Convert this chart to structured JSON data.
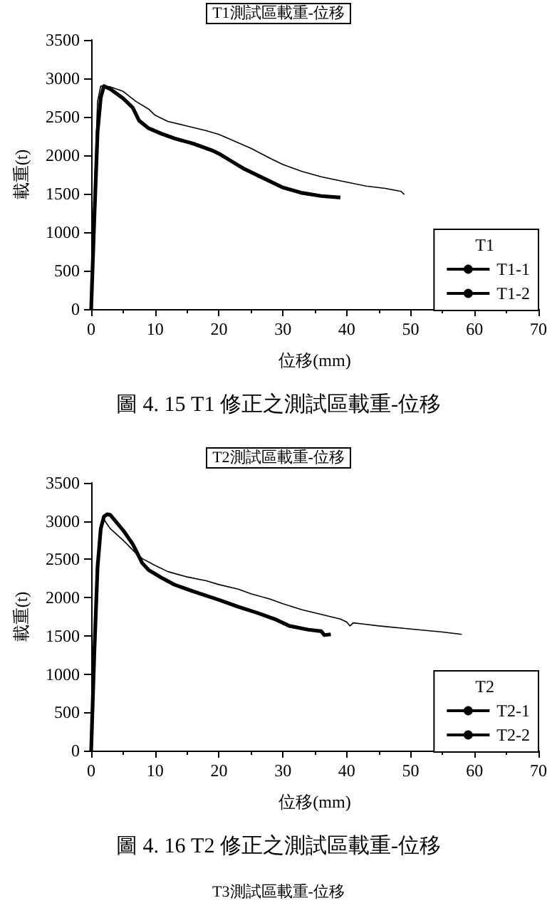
{
  "chart_data": [
    {
      "type": "line",
      "title": "T1測試區載重-位移",
      "xlabel": "位移(mm)",
      "ylabel": "載重(t)",
      "legend_title": "T1",
      "legend": "bottom right",
      "grid": false,
      "marker": "none",
      "line_style": "solid",
      "xlim": [
        0,
        70
      ],
      "xticks": [
        0,
        10,
        20,
        30,
        40,
        50,
        60,
        70
      ],
      "ylim": [
        0,
        3500
      ],
      "yticks": [
        0,
        500,
        1000,
        1500,
        2000,
        2500,
        3000,
        3500
      ],
      "annotations": [
        "圖 4. 15 T1 修正之測試區載重-位移"
      ],
      "series": [
        {
          "name": "T1-1",
          "color": "#000000",
          "x": [
            0,
            0.5,
            1,
            1.5,
            3,
            5,
            7,
            9,
            10,
            12,
            15,
            18,
            20,
            22,
            25,
            28,
            30,
            33,
            36,
            40,
            43,
            46,
            48.5,
            49
          ],
          "values": [
            0,
            1500,
            2700,
            2900,
            2890,
            2830,
            2700,
            2600,
            2520,
            2440,
            2380,
            2320,
            2270,
            2200,
            2090,
            1960,
            1880,
            1790,
            1720,
            1650,
            1600,
            1570,
            1530,
            1490
          ]
        },
        {
          "name": "T1-2",
          "color": "#000000",
          "x": [
            0,
            0.5,
            1,
            1.5,
            2,
            3,
            5,
            6.5,
            7.5,
            9,
            11,
            13,
            16,
            19,
            20,
            22,
            24,
            27,
            30,
            33,
            36,
            39
          ],
          "values": [
            0,
            1200,
            2300,
            2750,
            2900,
            2860,
            2740,
            2620,
            2450,
            2350,
            2280,
            2220,
            2150,
            2060,
            2020,
            1920,
            1820,
            1700,
            1580,
            1510,
            1470,
            1450
          ]
        }
      ]
    },
    {
      "type": "line",
      "title": "T2測試區載重-位移",
      "xlabel": "位移(mm)",
      "ylabel": "載重(t)",
      "legend_title": "T2",
      "legend": "bottom right",
      "grid": false,
      "marker": "none",
      "line_style": "solid",
      "xlim": [
        0,
        70
      ],
      "xticks": [
        0,
        10,
        20,
        30,
        40,
        50,
        60,
        70
      ],
      "ylim": [
        0,
        3500
      ],
      "yticks": [
        0,
        500,
        1000,
        1500,
        2000,
        2500,
        3000,
        3500
      ],
      "annotations": [
        "圖 4. 16 T2 修正之測試區載重-位移",
        "T3測試區載重-位移"
      ],
      "series": [
        {
          "name": "T2-1",
          "color": "#000000",
          "x": [
            0,
            0.5,
            1,
            1.5,
            2,
            3,
            5,
            7,
            8,
            10,
            12,
            15,
            18,
            20,
            23,
            25,
            28,
            30,
            33,
            36,
            39,
            40,
            40.5,
            41,
            45,
            50,
            55,
            58
          ],
          "values": [
            0,
            1500,
            2500,
            2950,
            3020,
            2900,
            2750,
            2580,
            2510,
            2420,
            2340,
            2270,
            2220,
            2170,
            2110,
            2050,
            1980,
            1920,
            1840,
            1780,
            1720,
            1680,
            1630,
            1670,
            1630,
            1590,
            1550,
            1520
          ]
        },
        {
          "name": "T2-2",
          "color": "#000000",
          "x": [
            0,
            0.5,
            1,
            1.5,
            2,
            2.5,
            3,
            5,
            6.5,
            8,
            9,
            11,
            13,
            16,
            20,
            23,
            26,
            29,
            31,
            34,
            36,
            36.5,
            37.5
          ],
          "values": [
            0,
            1300,
            2400,
            2900,
            3060,
            3090,
            3080,
            2880,
            2700,
            2450,
            2360,
            2260,
            2170,
            2080,
            1970,
            1880,
            1800,
            1710,
            1630,
            1580,
            1560,
            1510,
            1520
          ]
        }
      ]
    }
  ]
}
